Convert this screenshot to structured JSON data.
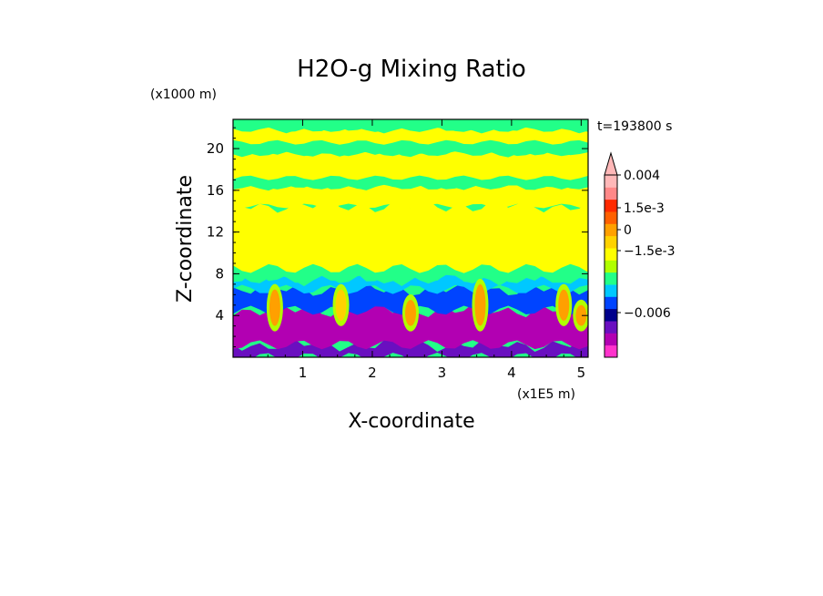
{
  "chart_data": {
    "type": "heatmap",
    "title": "H2O-g Mixing Ratio",
    "xlabel": "X-coordinate",
    "ylabel": "Z-coordinate",
    "x_units": "(x1E5 m)",
    "y_units": "(x1000 m)",
    "time_label": "t=193800 s",
    "xlim": [
      0,
      5.1
    ],
    "ylim": [
      0,
      22.8
    ],
    "x_ticks": [
      1,
      2,
      3,
      4,
      5
    ],
    "x_tick_labels": [
      "1",
      "2",
      "3",
      "4",
      "5"
    ],
    "y_ticks": [
      4,
      8,
      12,
      16,
      20
    ],
    "y_tick_labels": [
      "4",
      "8",
      "12",
      "16",
      "20"
    ],
    "colorbar": {
      "colors": [
        "#ff33cc",
        "#b200b2",
        "#6a0fc0",
        "#00008b",
        "#0044ff",
        "#00c8ff",
        "#22ff88",
        "#b0ff00",
        "#ffff00",
        "#ffd200",
        "#ffa000",
        "#ff6000",
        "#ff2a00",
        "#ff8888",
        "#ffb8b8"
      ],
      "tick_labels": [
        "0.004",
        "1.5e-3",
        "0",
        "−1.5e-3",
        "−0.006"
      ],
      "tick_levels": [
        0.004,
        0.0015,
        0,
        -0.0015,
        -0.006
      ]
    },
    "bands": [
      {
        "z": [
          0,
          1.2
        ],
        "color": "#6a0fc0"
      },
      {
        "z": [
          1.2,
          4.5
        ],
        "color": "#b200b2"
      },
      {
        "z": [
          4.5,
          6.5
        ],
        "color": "#0044ff"
      },
      {
        "z": [
          6.5,
          7.5
        ],
        "color": "#00c8ff"
      },
      {
        "z": [
          7.5,
          8.5
        ],
        "color": "#22ff88"
      },
      {
        "z": [
          8.5,
          14.5
        ],
        "color": "#ffff00"
      },
      {
        "z": [
          14.5,
          16.3
        ],
        "color": "#ffff00"
      },
      {
        "z": [
          16.3,
          17.2
        ],
        "color": "#22ff88"
      },
      {
        "z": [
          17.2,
          19.5
        ],
        "color": "#ffff00"
      },
      {
        "z": [
          19.5,
          20.6
        ],
        "color": "#22ff88"
      },
      {
        "z": [
          20.6,
          21.8
        ],
        "color": "#ffff00"
      },
      {
        "z": [
          21.8,
          22.8
        ],
        "color": "#22ff88"
      }
    ],
    "plumes": [
      {
        "x": 0.6,
        "z": [
          3,
          6.5
        ],
        "color": "#ffa000"
      },
      {
        "x": 1.55,
        "z": [
          3.5,
          6.5
        ],
        "color": "#ffd200"
      },
      {
        "x": 2.55,
        "z": [
          3,
          5.5
        ],
        "color": "#ffa000"
      },
      {
        "x": 3.55,
        "z": [
          3,
          7
        ],
        "color": "#ffa000"
      },
      {
        "x": 4.75,
        "z": [
          3.5,
          6.5
        ],
        "color": "#ffa000"
      },
      {
        "x": 5.0,
        "z": [
          3,
          5
        ],
        "color": "#ffa000"
      }
    ]
  }
}
